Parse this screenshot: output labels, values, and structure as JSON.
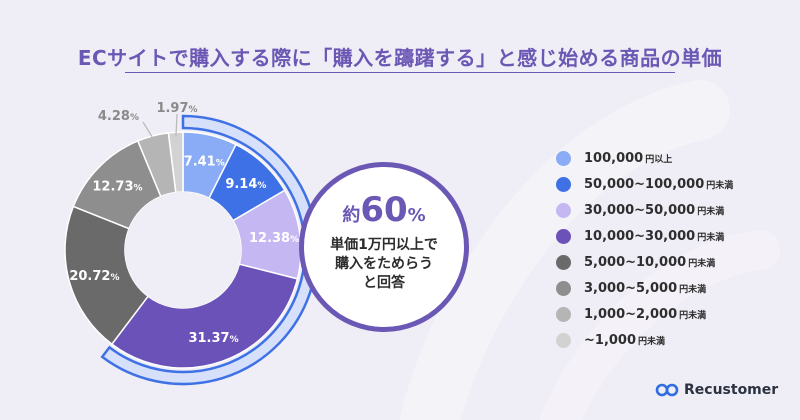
{
  "title": "ECサイトで購入する際に「購入を躊躇する」と感じ始める商品の単価",
  "chart_data": {
    "type": "pie",
    "categories": [
      "100,000円以上",
      "50,000~100,000円未満",
      "30,000~50,000円未満",
      "10,000~30,000円未満",
      "5,000~10,000円未満",
      "3,000~5,000円未満",
      "1,000~2,000円未満",
      "~1,000円未満"
    ],
    "values": [
      7.41,
      9.14,
      12.38,
      31.37,
      20.72,
      12.73,
      4.28,
      1.97
    ],
    "value_labels": [
      "7.41",
      "9.14",
      "12.38",
      "31.37",
      "20.72",
      "12.73",
      "4.28",
      "1.97"
    ],
    "unit": "%",
    "colors": [
      "#8aabf5",
      "#3f71e6",
      "#c5b8f2",
      "#6a52b8",
      "#6a6a6a",
      "#8e8e8e",
      "#b5b5b5",
      "#d2d2d2"
    ],
    "legend_position": "right"
  },
  "legend": [
    {
      "main": "100,000",
      "suffix": "円以上",
      "color": "#8aabf5"
    },
    {
      "main": "50,000~100,000",
      "suffix": "円未満",
      "color": "#3f71e6"
    },
    {
      "main": "30,000~50,000",
      "suffix": "円未満",
      "color": "#c5b8f2"
    },
    {
      "main": "10,000~30,000",
      "suffix": "円未満",
      "color": "#6a52b8"
    },
    {
      "main": "5,000~10,000",
      "suffix": "円未満",
      "color": "#6a6a6a"
    },
    {
      "main": "3,000~5,000",
      "suffix": "円未満",
      "color": "#8e8e8e"
    },
    {
      "main": "1,000~2,000",
      "suffix": "円未満",
      "color": "#b5b5b5"
    },
    {
      "main": "~1,000",
      "suffix": "円未満",
      "color": "#d2d2d2"
    }
  ],
  "callout": {
    "prefix": "約",
    "number": "60",
    "percent": "%",
    "text": "単価1万円以上で\n購入をためらう\nと回答",
    "highlight_share": 60.3,
    "accent_color": "#6b57b4"
  },
  "logo": {
    "text": "Recustomer"
  }
}
